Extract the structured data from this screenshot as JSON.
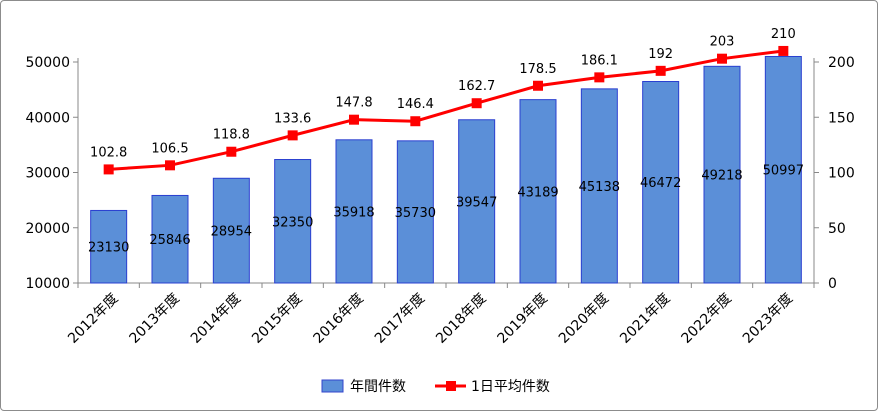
{
  "chart_data": {
    "type": "bar",
    "categories": [
      "2012年度",
      "2013年度",
      "2014年度",
      "2015年度",
      "2016年度",
      "2017年度",
      "2018年度",
      "2019年度",
      "2020年度",
      "2021年度",
      "2022年度",
      "2023年度"
    ],
    "series": [
      {
        "name": "年間件数",
        "type": "bar",
        "axis": "left",
        "color": "#5b8fd8",
        "values": [
          23130,
          25846,
          28954,
          32350,
          35918,
          35730,
          39547,
          43189,
          45138,
          46472,
          49218,
          50997
        ],
        "labels": [
          "23130",
          "25846",
          "28954",
          "32350",
          "35918",
          "35730",
          "39547",
          "43189",
          "45138",
          "46472",
          "49218",
          "50997"
        ]
      },
      {
        "name": "1日平均件数",
        "type": "line",
        "axis": "right",
        "color": "#ff0000",
        "values": [
          102.8,
          106.5,
          118.8,
          133.6,
          147.8,
          146.4,
          162.7,
          178.5,
          186.1,
          192,
          203,
          210
        ],
        "labels": [
          "102.8",
          "106.5",
          "118.8",
          "133.6",
          "147.8",
          "146.4",
          "162.7",
          "178.5",
          "186.1",
          "192",
          "203",
          "210"
        ]
      }
    ],
    "y_left": {
      "ylim": [
        10000,
        50000
      ],
      "ticks": [
        "10000",
        "20000",
        "30000",
        "40000",
        "50000"
      ]
    },
    "y_right": {
      "ylim": [
        0,
        200
      ],
      "ticks": [
        "0",
        "50",
        "100",
        "150",
        "200"
      ]
    },
    "grid": false,
    "legend_position": "bottom"
  }
}
